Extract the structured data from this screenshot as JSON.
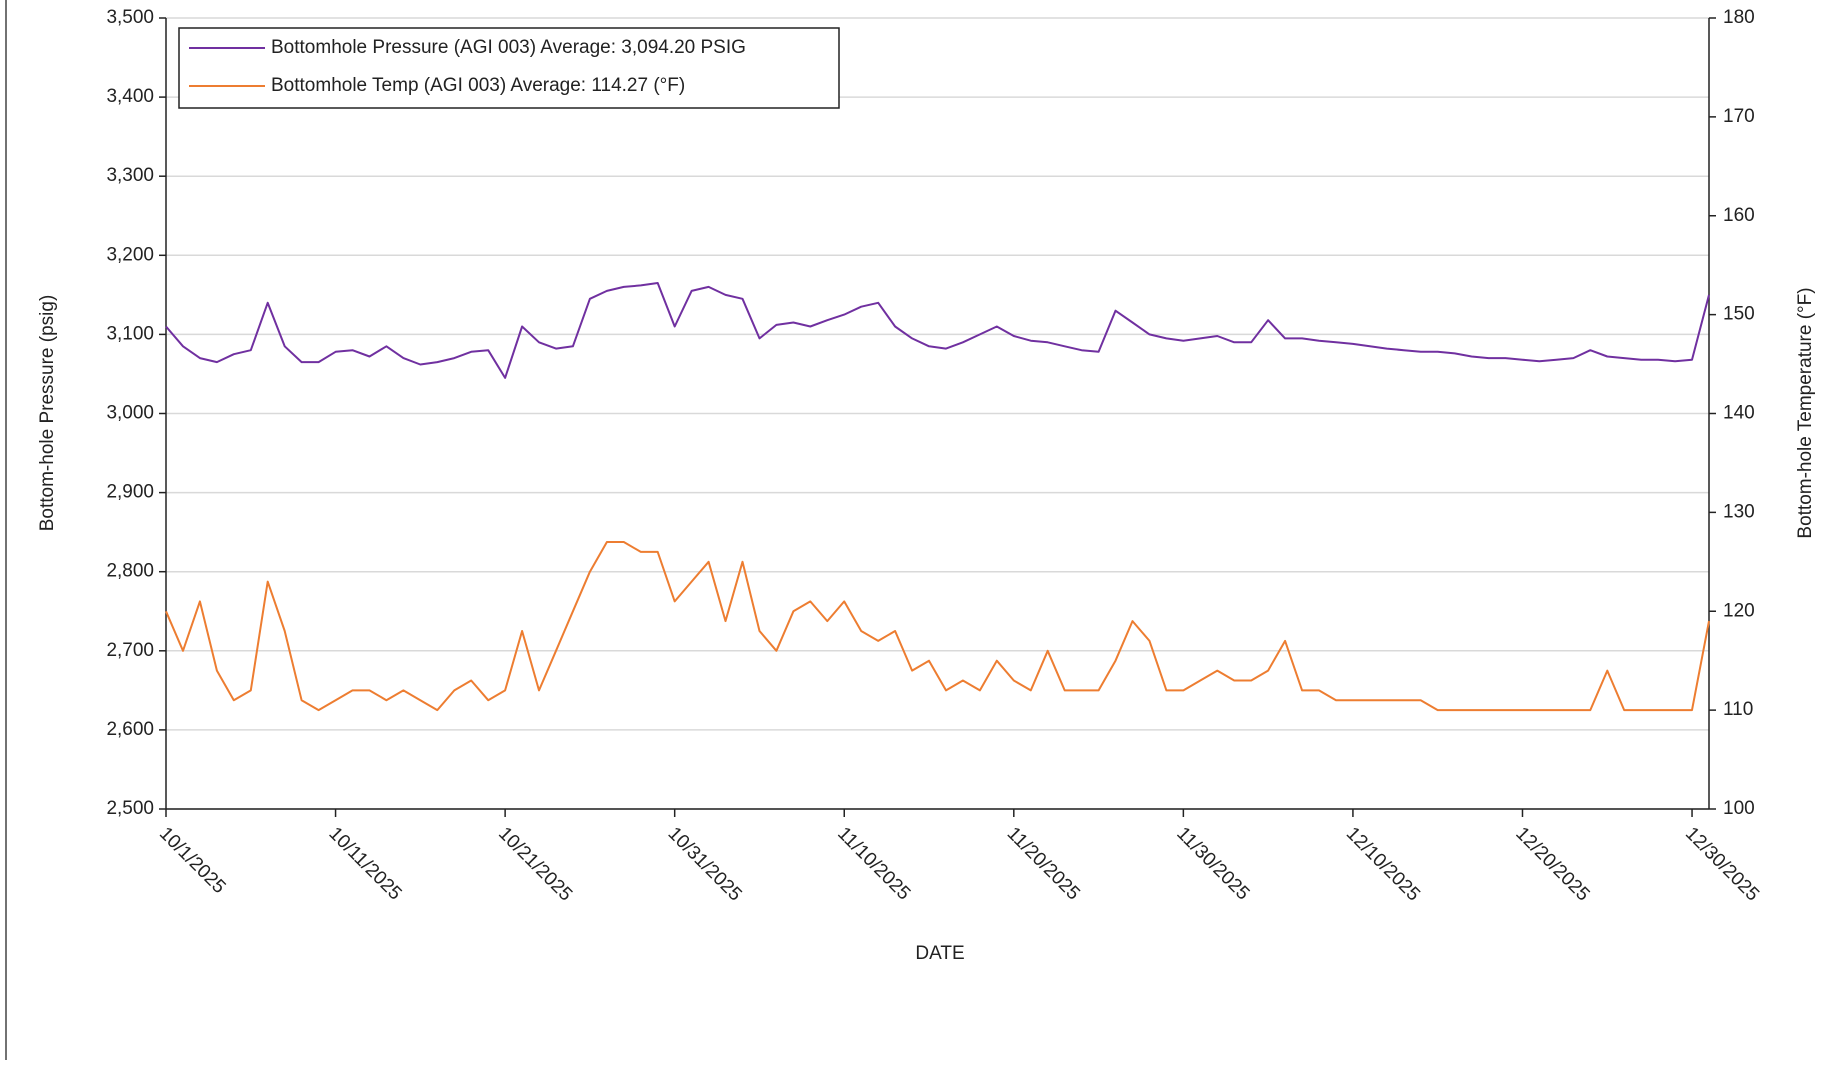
{
  "chart_data": {
    "type": "line",
    "x_label": "DATE",
    "y_label": "Bottom-hole Pressure (psig)",
    "y2_label": "Bottom-hole Temperature (°F)",
    "x": [
      "10/1/2025",
      "10/2/2025",
      "10/3/2025",
      "10/4/2025",
      "10/5/2025",
      "10/6/2025",
      "10/7/2025",
      "10/8/2025",
      "10/9/2025",
      "10/10/2025",
      "10/11/2025",
      "10/12/2025",
      "10/13/2025",
      "10/14/2025",
      "10/15/2025",
      "10/16/2025",
      "10/17/2025",
      "10/18/2025",
      "10/19/2025",
      "10/20/2025",
      "10/21/2025",
      "10/22/2025",
      "10/23/2025",
      "10/24/2025",
      "10/25/2025",
      "10/26/2025",
      "10/27/2025",
      "10/28/2025",
      "10/29/2025",
      "10/30/2025",
      "10/31/2025",
      "11/1/2025",
      "11/2/2025",
      "11/3/2025",
      "11/4/2025",
      "11/5/2025",
      "11/6/2025",
      "11/7/2025",
      "11/8/2025",
      "11/9/2025",
      "11/10/2025",
      "11/11/2025",
      "11/12/2025",
      "11/13/2025",
      "11/14/2025",
      "11/15/2025",
      "11/16/2025",
      "11/17/2025",
      "11/18/2025",
      "11/19/2025",
      "11/20/2025",
      "11/21/2025",
      "11/22/2025",
      "11/23/2025",
      "11/24/2025",
      "11/25/2025",
      "11/26/2025",
      "11/27/2025",
      "11/28/2025",
      "11/29/2025",
      "11/30/2025",
      "12/1/2025",
      "12/2/2025",
      "12/3/2025",
      "12/4/2025",
      "12/5/2025",
      "12/6/2025",
      "12/7/2025",
      "12/8/2025",
      "12/9/2025",
      "12/10/2025",
      "12/11/2025",
      "12/12/2025",
      "12/13/2025",
      "12/14/2025",
      "12/15/2025",
      "12/16/2025",
      "12/17/2025",
      "12/18/2025",
      "12/19/2025",
      "12/20/2025",
      "12/21/2025",
      "12/22/2025",
      "12/23/2025",
      "12/24/2025",
      "12/25/2025",
      "12/26/2025",
      "12/27/2025",
      "12/28/2025",
      "12/29/2025",
      "12/30/2025",
      "12/31/2025"
    ],
    "series": [
      {
        "name": "Bottomhole Pressure (AGI 003) Average: 3,094.20 PSIG",
        "color": "#7030a0",
        "values": [
          3110,
          3085,
          3070,
          3065,
          3075,
          3080,
          3140,
          3085,
          3065,
          3065,
          3078,
          3080,
          3072,
          3085,
          3070,
          3062,
          3065,
          3070,
          3078,
          3080,
          3045,
          3110,
          3090,
          3082,
          3085,
          3145,
          3155,
          3160,
          3162,
          3165,
          3110,
          3155,
          3160,
          3150,
          3145,
          3095,
          3112,
          3115,
          3110,
          3118,
          3125,
          3135,
          3140,
          3110,
          3095,
          3085,
          3082,
          3090,
          3100,
          3110,
          3098,
          3092,
          3090,
          3085,
          3080,
          3078,
          3130,
          3115,
          3100,
          3095,
          3092,
          3095,
          3098,
          3090,
          3090,
          3118,
          3095,
          3095,
          3092,
          3090,
          3088,
          3085,
          3082,
          3080,
          3078,
          3078,
          3076,
          3072,
          3070,
          3070,
          3068,
          3066,
          3068,
          3070,
          3080,
          3072,
          3070,
          3068,
          3068,
          3066,
          3068,
          3150
        ]
      },
      {
        "name": "Bottomhole Temp (AGI 003) Average: 114.27 (°F)",
        "color": "#ed7d31",
        "axis": "y2",
        "values": [
          120,
          116,
          121,
          114,
          111,
          112,
          123,
          118,
          111,
          110,
          111,
          112,
          112,
          111,
          112,
          111,
          110,
          112,
          113,
          111,
          112,
          118,
          112,
          116,
          120,
          124,
          127,
          127,
          126,
          126,
          121,
          123,
          125,
          119,
          125,
          118,
          116,
          120,
          121,
          119,
          121,
          118,
          117,
          118,
          114,
          115,
          112,
          113,
          112,
          115,
          113,
          112,
          116,
          112,
          112,
          112,
          115,
          119,
          117,
          112,
          112,
          113,
          114,
          113,
          113,
          114,
          117,
          112,
          112,
          111,
          111,
          111,
          111,
          111,
          111,
          110,
          110,
          110,
          110,
          110,
          110,
          110,
          110,
          110,
          110,
          114,
          110,
          110,
          110,
          110,
          110,
          119
        ]
      }
    ],
    "xlim": [
      "10/1/2025",
      "12/31/2025"
    ],
    "xticks": [
      "10/1/2025",
      "10/11/2025",
      "10/21/2025",
      "10/31/2025",
      "11/10/2025",
      "11/20/2025",
      "11/30/2025",
      "12/10/2025",
      "12/20/2025",
      "12/30/2025"
    ],
    "ylim": [
      2500,
      3500
    ],
    "yticks": [
      {
        "value": 2500,
        "label": "2,500"
      },
      {
        "value": 2600,
        "label": "2,600"
      },
      {
        "value": 2700,
        "label": "2,700"
      },
      {
        "value": 2800,
        "label": "2,800"
      },
      {
        "value": 2900,
        "label": "2,900"
      },
      {
        "value": 3000,
        "label": "3,000"
      },
      {
        "value": 3100,
        "label": "3,100"
      },
      {
        "value": 3200,
        "label": "3,200"
      },
      {
        "value": 3300,
        "label": "3,300"
      },
      {
        "value": 3400,
        "label": "3,400"
      },
      {
        "value": 3500,
        "label": "3,500"
      }
    ],
    "y2lim": [
      100,
      180
    ],
    "y2ticks": [
      100,
      110,
      120,
      130,
      140,
      150,
      160,
      170,
      180
    ],
    "grid": true,
    "legend": "upper-left"
  }
}
